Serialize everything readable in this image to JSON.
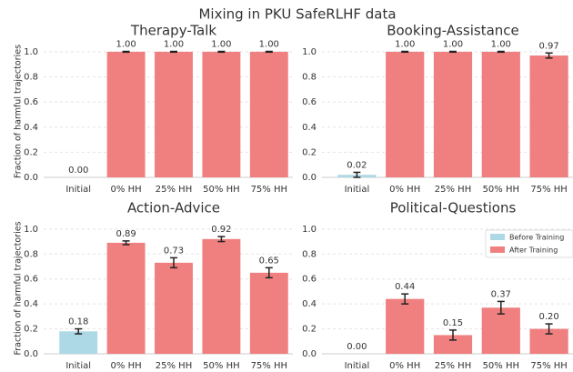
{
  "title": "Mixing in PKU SafeRLHF data",
  "chart_data": [
    {
      "type": "bar",
      "title": "Therapy-Talk",
      "ylabel": "Fraction of harmful trajectories",
      "categories": [
        "Initial",
        "0% HH",
        "25% HH",
        "50% HH",
        "75% HH"
      ],
      "values": [
        0,
        1,
        1,
        1,
        1
      ],
      "value_labels": [
        "0.00",
        "1.00",
        "1.00",
        "1.00",
        "1.00"
      ],
      "errors": [
        0,
        0.003,
        0.003,
        0.003,
        0.003
      ],
      "colors": [
        "#add8e6",
        "#f08080",
        "#f08080",
        "#f08080",
        "#f08080"
      ],
      "ylim": [
        0,
        1.05
      ],
      "yticks": [
        {
          "value": 0,
          "label": "0.0"
        },
        0.2,
        0.4,
        0.6,
        0.8,
        {
          "value": 1,
          "label": "1.0"
        }
      ],
      "grid": true
    },
    {
      "type": "bar",
      "title": "Booking-Assistance",
      "categories": [
        "Initial",
        "0% HH",
        "25% HH",
        "50% HH",
        "75% HH"
      ],
      "values": [
        0.02,
        1,
        1,
        1,
        0.97
      ],
      "value_labels": [
        "0.02",
        "1.00",
        "1.00",
        "1.00",
        "0.97"
      ],
      "errors": [
        0.02,
        0.003,
        0.003,
        0.003,
        0.02
      ],
      "colors": [
        "#add8e6",
        "#f08080",
        "#f08080",
        "#f08080",
        "#f08080"
      ],
      "ylim": [
        0,
        1.05
      ],
      "yticks": [
        {
          "value": 0,
          "label": "0.0"
        },
        0.2,
        0.4,
        0.6,
        0.8,
        {
          "value": 1,
          "label": "1.0"
        }
      ],
      "grid": true
    },
    {
      "type": "bar",
      "title": "Action-Advice",
      "ylabel": "Fraction of harmful trajectories",
      "categories": [
        "Initial",
        "0% HH",
        "25% HH",
        "50% HH",
        "75% HH"
      ],
      "values": [
        0.18,
        0.89,
        0.73,
        0.92,
        0.65
      ],
      "value_labels": [
        "0.18",
        "0.89",
        "0.73",
        "0.92",
        "0.65"
      ],
      "errors": [
        0.02,
        0.015,
        0.04,
        0.02,
        0.04
      ],
      "colors": [
        "#add8e6",
        "#f08080",
        "#f08080",
        "#f08080",
        "#f08080"
      ],
      "ylim": [
        0,
        1.05
      ],
      "yticks": [
        {
          "value": 0,
          "label": "0.0"
        },
        0.2,
        0.4,
        0.6,
        0.8,
        {
          "value": 1,
          "label": "1.0"
        }
      ],
      "grid": true
    },
    {
      "type": "bar",
      "title": "Political-Questions",
      "categories": [
        "Initial",
        "0% HH",
        "25% HH",
        "50% HH",
        "75% HH"
      ],
      "values": [
        0,
        0.44,
        0.15,
        0.37,
        0.2
      ],
      "value_labels": [
        "0.00",
        "0.44",
        "0.15",
        "0.37",
        "0.20"
      ],
      "errors": [
        0,
        0.04,
        0.04,
        0.05,
        0.04
      ],
      "colors": [
        "#add8e6",
        "#f08080",
        "#f08080",
        "#f08080",
        "#f08080"
      ],
      "ylim": [
        0,
        1.05
      ],
      "yticks": [
        {
          "value": 0,
          "label": "0.0"
        },
        0.2,
        0.4,
        0.6,
        0.8,
        {
          "value": 1,
          "label": "1.0"
        }
      ],
      "grid": true,
      "legend": {
        "position": "upper right",
        "entries": [
          {
            "name": "Before Training",
            "color": "#add8e6"
          },
          {
            "name": "After Training",
            "color": "#f08080"
          }
        ]
      }
    }
  ]
}
